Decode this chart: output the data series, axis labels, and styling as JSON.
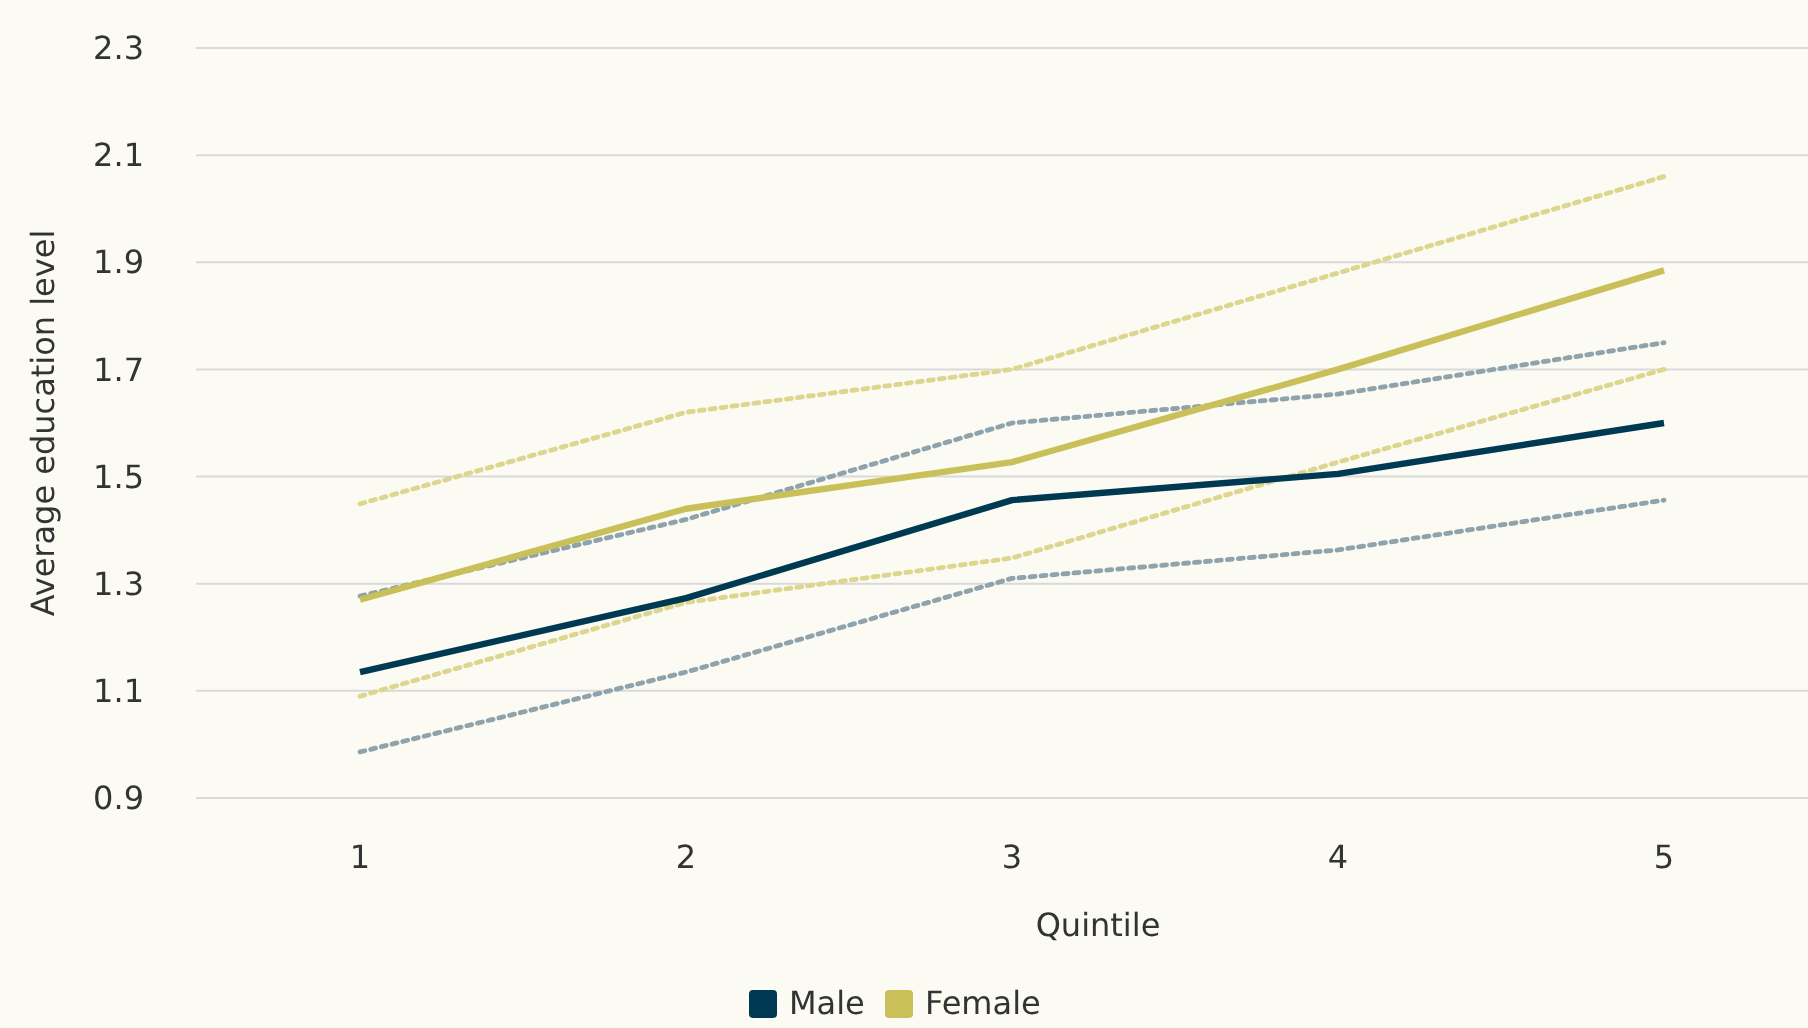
{
  "chart_data": {
    "type": "line",
    "xlabel": "Quintile",
    "ylabel": "Average education level",
    "categories": [
      "1",
      "2",
      "3",
      "4",
      "5"
    ],
    "series": [
      {
        "name": "Male",
        "color": "#003a52",
        "values": [
          1.135,
          1.273,
          1.456,
          1.505,
          1.6
        ]
      },
      {
        "name": "Female",
        "color": "#c9c05a",
        "values": [
          1.27,
          1.44,
          1.527,
          1.7,
          1.885
        ]
      },
      {
        "color": "#8fa3ad",
        "line_style": "dotted",
        "values": [
          0.986,
          1.135,
          1.31,
          1.363,
          1.456
        ]
      },
      {
        "color": "#8fa3ad",
        "line_style": "dotted",
        "values": [
          1.277,
          1.42,
          1.6,
          1.654,
          1.75
        ]
      },
      {
        "color": "#ddd68f",
        "line_style": "dotted",
        "values": [
          1.09,
          1.265,
          1.348,
          1.527,
          1.7
        ]
      },
      {
        "color": "#ddd68f",
        "line_style": "dotted",
        "values": [
          1.449,
          1.62,
          1.7,
          1.88,
          2.06
        ]
      }
    ],
    "ylim": [
      0.9,
      2.3
    ],
    "yticks": [
      0.9,
      1.1,
      1.3,
      1.5,
      1.7,
      1.9,
      2.1,
      2.3
    ],
    "grid": "y",
    "legend": "bottom",
    "line_style": "solid",
    "marker": "none"
  }
}
